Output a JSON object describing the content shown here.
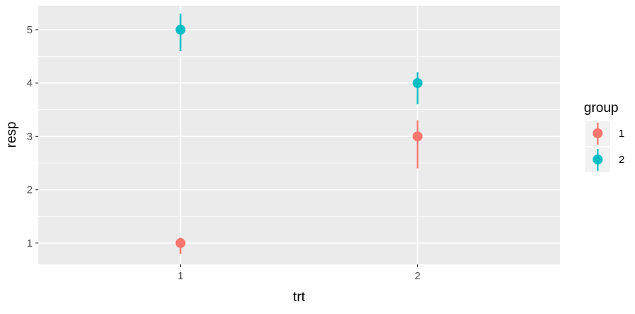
{
  "chart_data": {
    "type": "scatter",
    "subtype": "point-range",
    "xlabel": "trt",
    "ylabel": "resp",
    "x_categories": [
      "1",
      "2"
    ],
    "y_ticks": [
      1,
      2,
      3,
      4,
      5
    ],
    "ylim": [
      0.6,
      5.45
    ],
    "grid": true,
    "legend": {
      "title": "group",
      "placement": "right"
    },
    "series": [
      {
        "name": "1",
        "color": "#F8766D",
        "points": [
          {
            "x": "1",
            "y": 1.0,
            "lower": 0.8,
            "upper": 1.1
          },
          {
            "x": "2",
            "y": 3.0,
            "lower": 2.4,
            "upper": 3.3
          }
        ]
      },
      {
        "name": "2",
        "color": "#00BFC4",
        "points": [
          {
            "x": "1",
            "y": 5.0,
            "lower": 4.6,
            "upper": 5.3
          },
          {
            "x": "2",
            "y": 4.0,
            "lower": 3.6,
            "upper": 4.2
          }
        ]
      }
    ]
  }
}
